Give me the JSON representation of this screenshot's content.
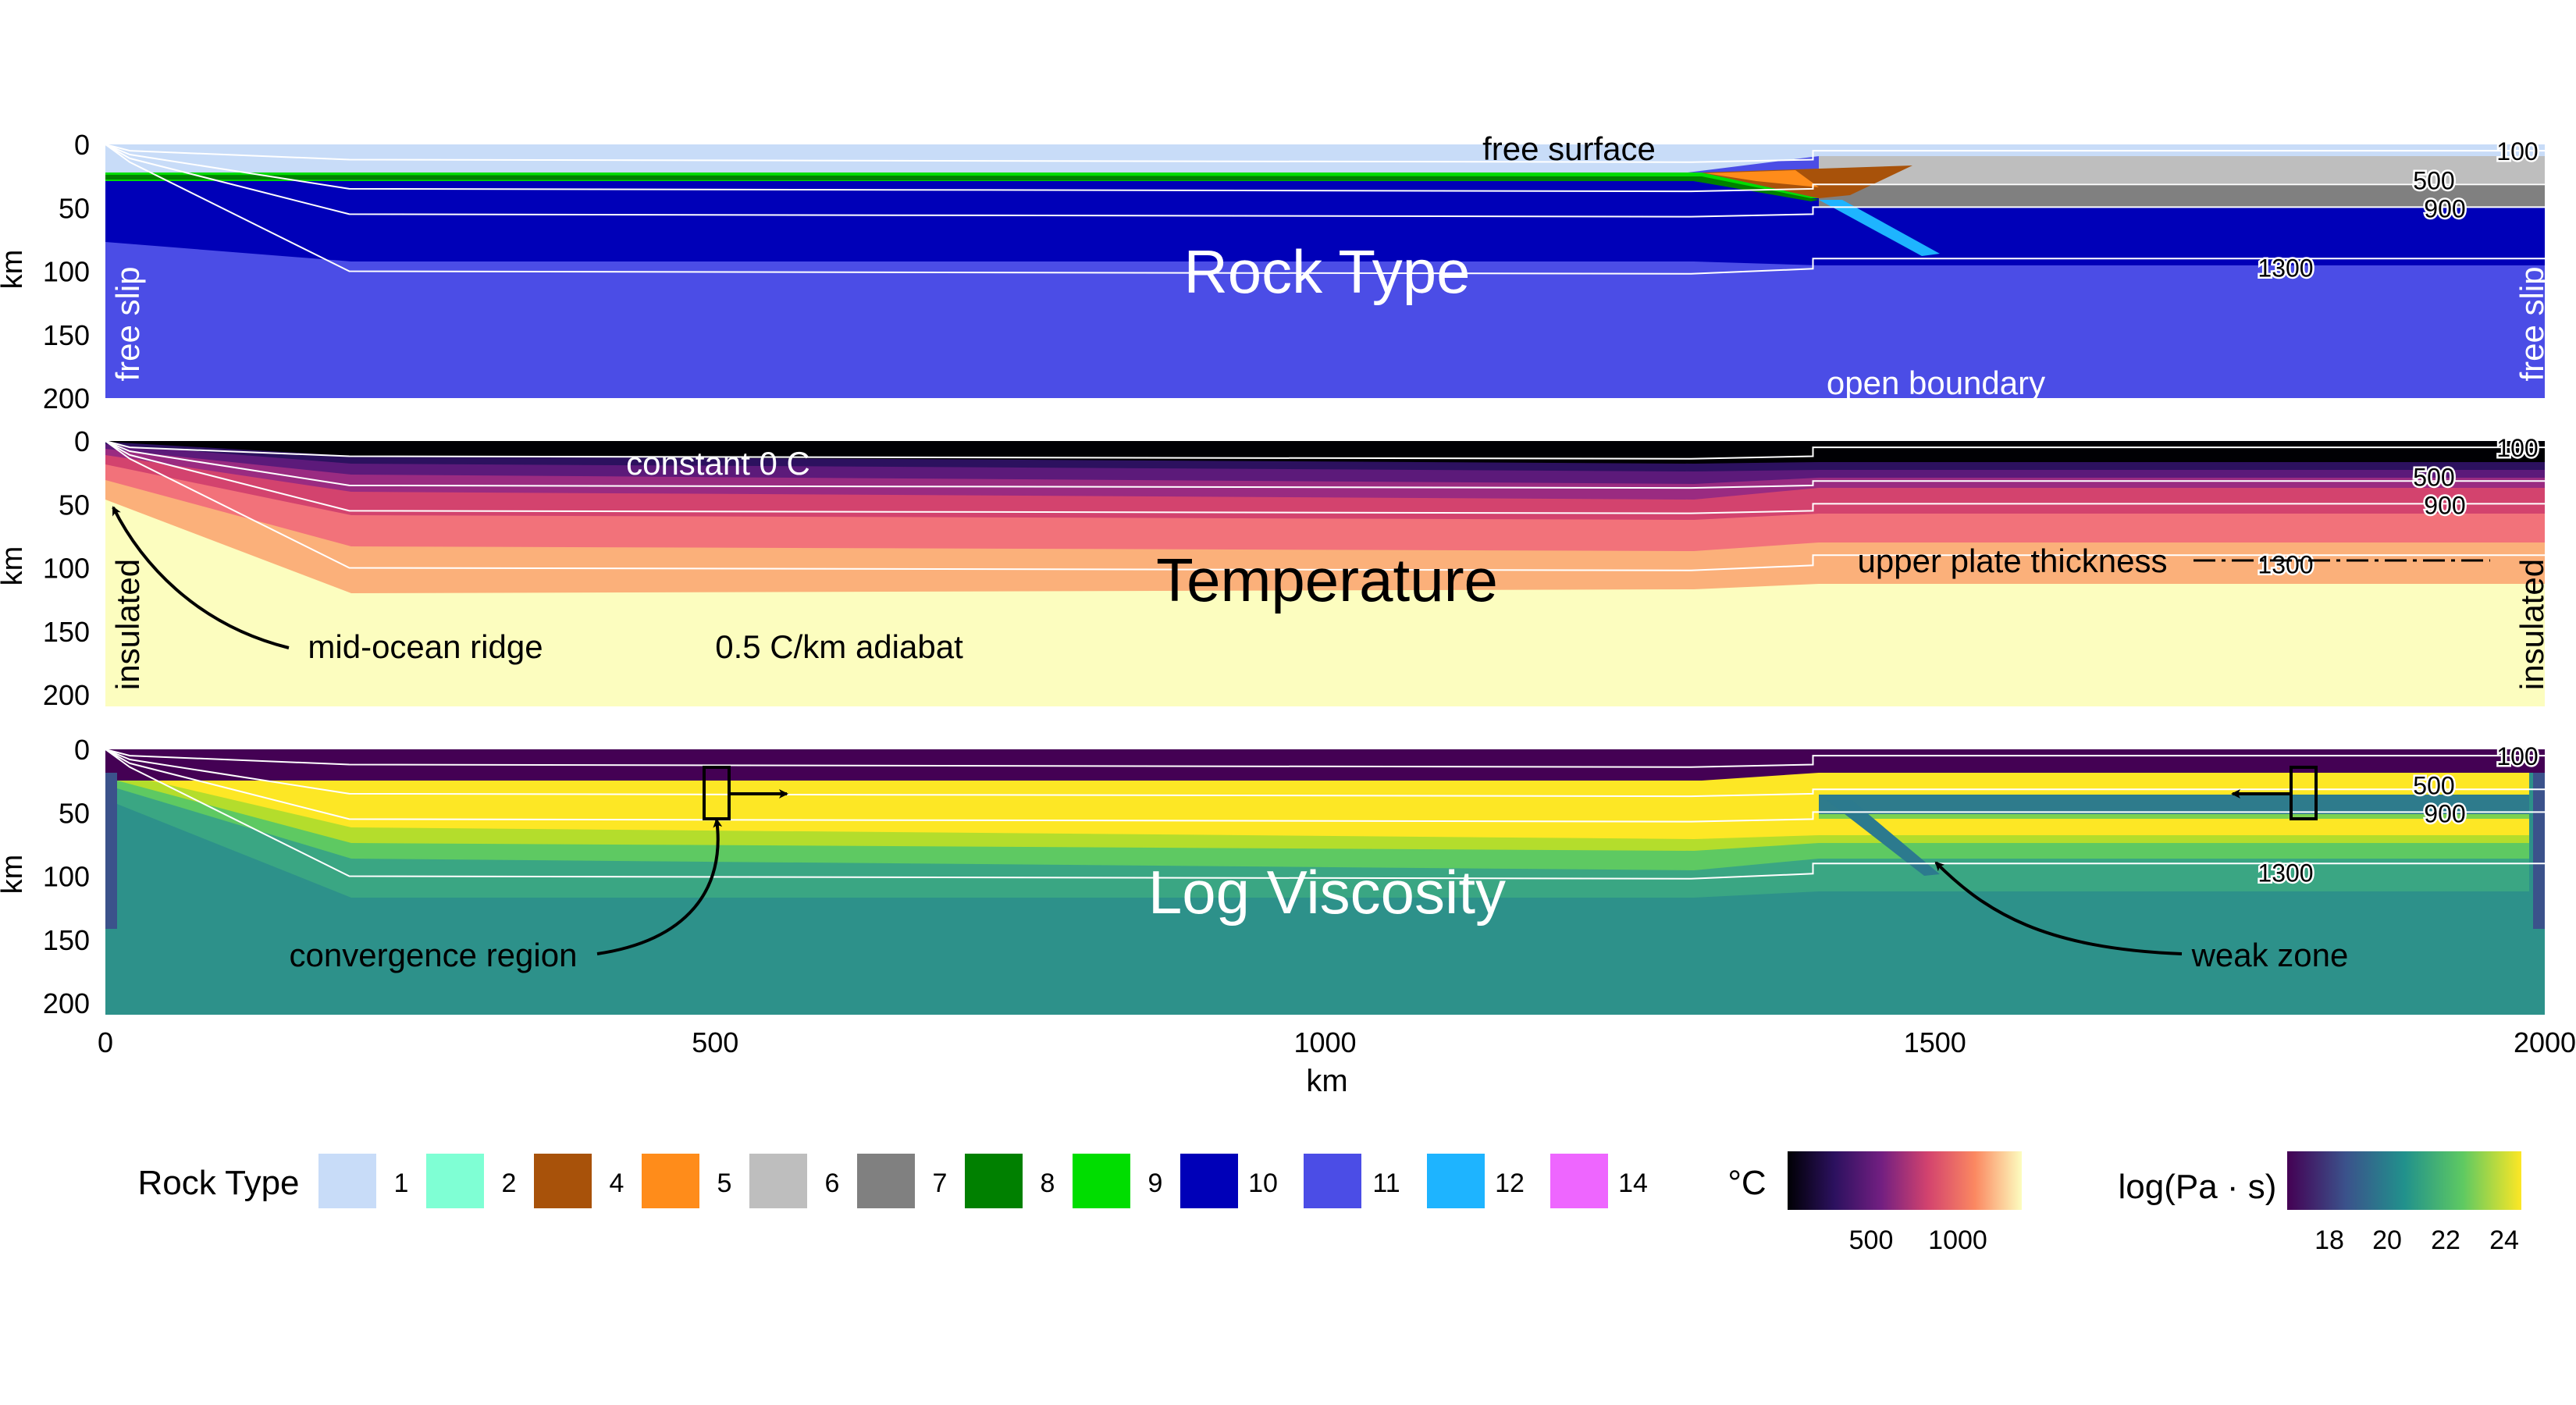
{
  "axes": {
    "y_label": "km",
    "y_ticks": [
      "0",
      "50",
      "100",
      "150",
      "200"
    ],
    "x_label": "km",
    "x_ticks": [
      "0",
      "500",
      "1000",
      "1500",
      "2000"
    ],
    "x_range": [
      0,
      2000
    ],
    "y_range": [
      0,
      200
    ],
    "y_inverted": true
  },
  "isotherm_labels": [
    "100",
    "500",
    "900",
    "1300"
  ],
  "isotherm_values": [
    100,
    500,
    900,
    1300
  ],
  "panels": [
    {
      "title": "Rock Type",
      "annotations": {
        "top": "free surface",
        "bottom": "open boundary",
        "left": "free slip",
        "right": "free slip"
      }
    },
    {
      "title": "Temperature",
      "annotations": {
        "top": "constant 0 C",
        "left": "insulated",
        "right": "insulated",
        "ridge": "mid-ocean ridge",
        "adiabat": "0.5 C/km adiabat",
        "plate": "upper plate thickness"
      }
    },
    {
      "title": "Log Viscosity",
      "annotations": {
        "convergence": "convergence region",
        "weak": "weak zone"
      }
    }
  ],
  "legend": {
    "rock_title": "Rock Type",
    "rock_types": [
      {
        "label": "1",
        "color": "#c8dcf8"
      },
      {
        "label": "2",
        "color": "#7fffd4"
      },
      {
        "label": "4",
        "color": "#a8520a"
      },
      {
        "label": "5",
        "color": "#ff8c1a"
      },
      {
        "label": "6",
        "color": "#bebebe"
      },
      {
        "label": "7",
        "color": "#808080"
      },
      {
        "label": "8",
        "color": "#008000"
      },
      {
        "label": "9",
        "color": "#00dd00"
      },
      {
        "label": "10",
        "color": "#0000b8"
      },
      {
        "label": "11",
        "color": "#4b4de6"
      },
      {
        "label": "12",
        "color": "#1eb4ff"
      },
      {
        "label": "14",
        "color": "#ee66ff"
      }
    ],
    "temp_title": "°C",
    "temp_ticks": [
      "500",
      "1000"
    ],
    "visc_title": "log(Pa · s)",
    "visc_ticks": [
      "18",
      "20",
      "22",
      "24"
    ]
  }
}
